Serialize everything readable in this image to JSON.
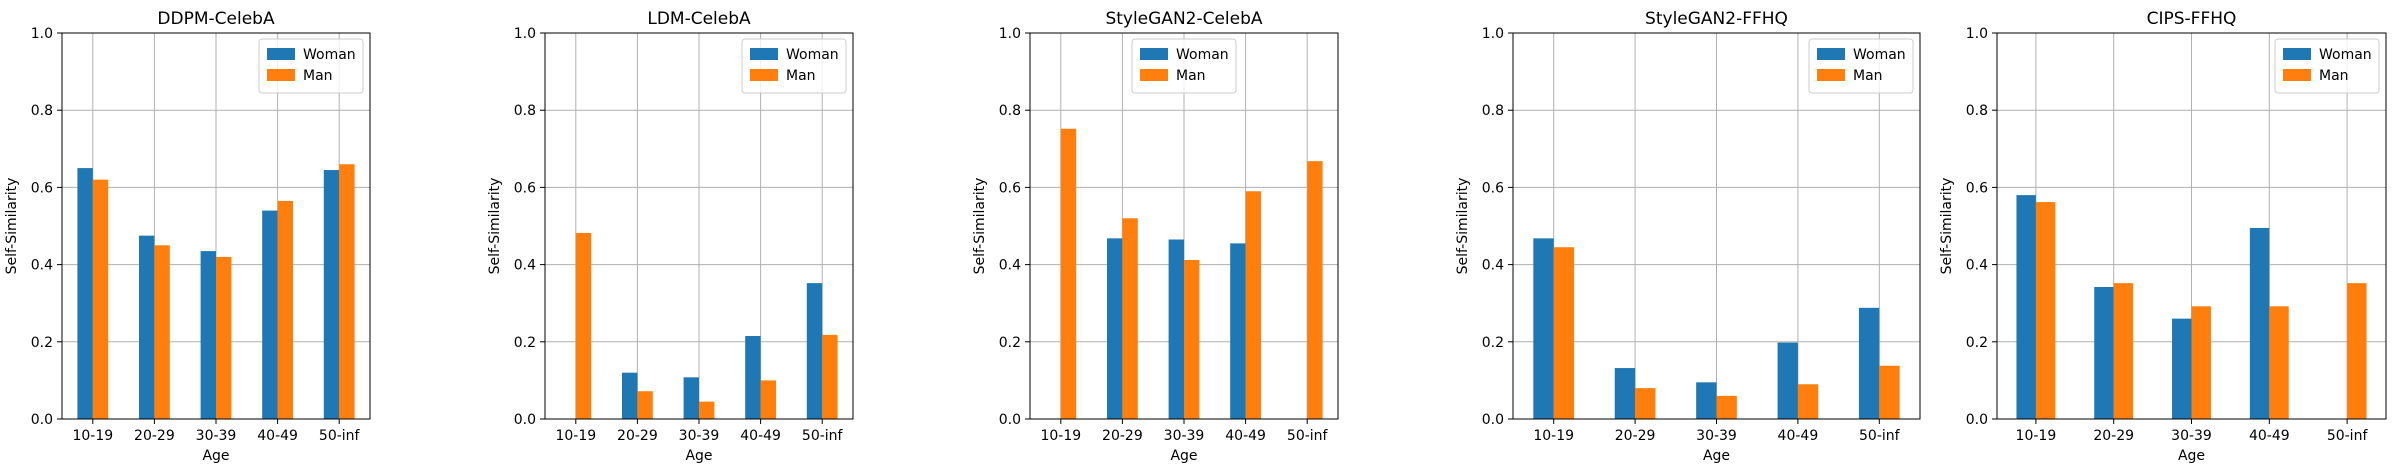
{
  "figure": {
    "colors": {
      "woman": "#1f77b4",
      "man": "#ff7f0e",
      "grid": "#b0b0b0",
      "axis": "#000000"
    }
  },
  "chart_data": [
    {
      "type": "bar",
      "title": "DDPM-CelebA",
      "xlabel": "Age",
      "ylabel": "Self-Similarity",
      "ylim": [
        0,
        1.0
      ],
      "yticks": [
        "0.0",
        "0.2",
        "0.4",
        "0.6",
        "0.8",
        "1.0"
      ],
      "grid": true,
      "legend_position": "top-right",
      "categories": [
        "10-19",
        "20-29",
        "30-39",
        "40-49",
        "50-inf"
      ],
      "series": [
        {
          "name": "Woman",
          "color": "#1f77b4",
          "values": [
            0.65,
            0.475,
            0.435,
            0.54,
            0.645
          ]
        },
        {
          "name": "Man",
          "color": "#ff7f0e",
          "values": [
            0.62,
            0.45,
            0.42,
            0.565,
            0.66
          ]
        }
      ]
    },
    {
      "type": "bar",
      "title": "LDM-CelebA",
      "xlabel": "Age",
      "ylabel": "Self-Similarity",
      "ylim": [
        0,
        1.0
      ],
      "yticks": [
        "0.0",
        "0.2",
        "0.4",
        "0.6",
        "0.8",
        "1.0"
      ],
      "grid": true,
      "legend_position": "top-right",
      "categories": [
        "10-19",
        "20-29",
        "30-39",
        "40-49",
        "50-inf"
      ],
      "series": [
        {
          "name": "Woman",
          "color": "#1f77b4",
          "values": [
            0,
            0.12,
            0.108,
            0.215,
            0.352
          ]
        },
        {
          "name": "Man",
          "color": "#ff7f0e",
          "values": [
            0.482,
            0.072,
            0.045,
            0.1,
            0.218
          ]
        }
      ]
    },
    {
      "type": "bar",
      "title": "StyleGAN2-CelebA",
      "xlabel": "Age",
      "ylabel": "Self-Similarity",
      "ylim": [
        0,
        1.0
      ],
      "yticks": [
        "0.0",
        "0.2",
        "0.4",
        "0.6",
        "0.8",
        "1.0"
      ],
      "grid": true,
      "legend_position": "top-center",
      "categories": [
        "10-19",
        "20-29",
        "30-39",
        "40-49",
        "50-inf"
      ],
      "series": [
        {
          "name": "Woman",
          "color": "#1f77b4",
          "values": [
            0,
            0.468,
            0.465,
            0.455,
            0
          ]
        },
        {
          "name": "Man",
          "color": "#ff7f0e",
          "values": [
            0.752,
            0.52,
            0.412,
            0.59,
            0.668
          ]
        }
      ]
    },
    {
      "type": "bar",
      "title": "StyleGAN2-FFHQ",
      "xlabel": "Age",
      "ylabel": "Self-Similarity",
      "ylim": [
        0,
        1.0
      ],
      "yticks": [
        "0.0",
        "0.2",
        "0.4",
        "0.6",
        "0.8",
        "1.0"
      ],
      "grid": true,
      "legend_position": "top-right",
      "categories": [
        "10-19",
        "20-29",
        "30-39",
        "40-49",
        "50-inf"
      ],
      "series": [
        {
          "name": "Woman",
          "color": "#1f77b4",
          "values": [
            0.468,
            0.132,
            0.095,
            0.198,
            0.288
          ]
        },
        {
          "name": "Man",
          "color": "#ff7f0e",
          "values": [
            0.445,
            0.08,
            0.06,
            0.09,
            0.138
          ]
        }
      ]
    },
    {
      "type": "bar",
      "title": "CIPS-FFHQ",
      "xlabel": "Age",
      "ylabel": "Self-Similarity",
      "ylim": [
        0,
        1.0
      ],
      "yticks": [
        "0.0",
        "0.2",
        "0.4",
        "0.6",
        "0.8",
        "1.0"
      ],
      "grid": true,
      "legend_position": "top-right",
      "categories": [
        "10-19",
        "20-29",
        "30-39",
        "40-49",
        "50-inf"
      ],
      "series": [
        {
          "name": "Woman",
          "color": "#1f77b4",
          "values": [
            0.58,
            0.342,
            0.26,
            0.495,
            0
          ]
        },
        {
          "name": "Man",
          "color": "#ff7f0e",
          "values": [
            0.562,
            0.352,
            0.292,
            0.292,
            0.352
          ]
        }
      ]
    }
  ]
}
